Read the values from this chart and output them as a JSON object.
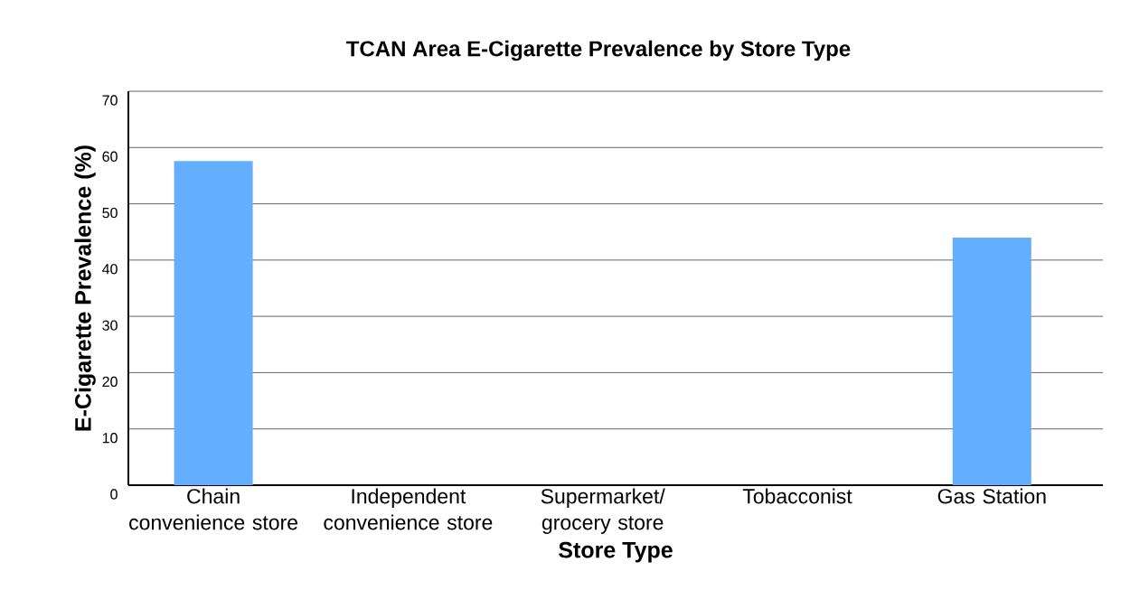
{
  "chart_data": {
    "type": "bar",
    "title": "TCAN Area E-Cigarette Prevalence by Store Type",
    "xlabel": "Store Type",
    "ylabel": "E-Cigarette Prevalence (%)",
    "categories": [
      "Chain convenience store",
      "Independent convenience store",
      "Supermarket/ grocery store",
      "Tobacconist",
      "Gas Station"
    ],
    "values": [
      57.6,
      0,
      0,
      0,
      44.0
    ],
    "color": "#63aeff",
    "ylim": [
      0,
      70
    ],
    "yticks": [
      0,
      10,
      20,
      30,
      40,
      50,
      60,
      70
    ],
    "grid": "y"
  }
}
